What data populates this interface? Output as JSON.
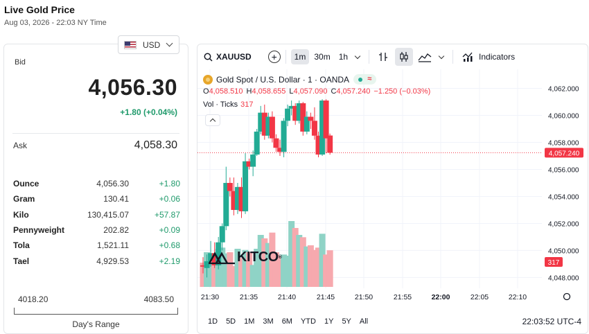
{
  "page": {
    "title": "Live Gold Price",
    "subtitle": "Aug 03, 2026 - 22:03 NY Time"
  },
  "currency": {
    "selected": "USD",
    "icon": "us-flag-icon"
  },
  "quote": {
    "bid_label": "Bid",
    "bid_value": "4,056.30",
    "bid_change": "+1.80 (+0.04%)",
    "ask_label": "Ask",
    "ask_value": "4,058.30"
  },
  "units": [
    {
      "name": "Ounce",
      "price": "4,056.30",
      "change": "+1.80"
    },
    {
      "name": "Gram",
      "price": "130.41",
      "change": "+0.06"
    },
    {
      "name": "Kilo",
      "price": "130,415.07",
      "change": "+57.87"
    },
    {
      "name": "Pennyweight",
      "price": "202.82",
      "change": "+0.09"
    },
    {
      "name": "Tola",
      "price": "1,521.11",
      "change": "+0.68"
    },
    {
      "name": "Tael",
      "price": "4,929.53",
      "change": "+2.19"
    }
  ],
  "days_range": {
    "low": "4018.20",
    "high": "4083.50",
    "label": "Day's Range"
  },
  "colors": {
    "up": "#22ab94",
    "down": "#f23645",
    "change_text": "#1f9a6b",
    "gold": "#e7a62a"
  },
  "toolbar": {
    "symbol": "XAUUSD",
    "intervals": [
      "1m",
      "30m",
      "1h"
    ],
    "active_interval": "1m",
    "indicators_label": "Indicators"
  },
  "legend": {
    "title": "Gold Spot / U.S. Dollar · 1 · OANDA",
    "ohlc": [
      {
        "key": "O",
        "value": "4,058.510"
      },
      {
        "key": "H",
        "value": "4,058.655"
      },
      {
        "key": "L",
        "value": "4,057.090"
      },
      {
        "key": "C",
        "value": "4,057.240"
      },
      {
        "key": "",
        "value": "−1.250 (−0.03%)"
      }
    ],
    "vol_label": "Vol · Ticks",
    "vol_value": "317"
  },
  "watermark": {
    "text": "KITCO",
    "reg": "®"
  },
  "range_buttons": [
    "1D",
    "5D",
    "1M",
    "3M",
    "6M",
    "YTD",
    "1Y",
    "5Y",
    "All"
  ],
  "clock": "22:03:52 UTC-4",
  "chart_data": {
    "type": "candlestick",
    "price_axis": {
      "ticks": [
        "4,062.000",
        "4,060.000",
        "4,058.000",
        "4,056.000",
        "4,054.000",
        "4,052.000",
        "4,050.000",
        "4,048.000"
      ],
      "ylim": [
        4047.2,
        4062.9
      ]
    },
    "time_axis": {
      "ticks": [
        "21:30",
        "21:35",
        "21:40",
        "21:45",
        "21:50",
        "21:55",
        "22:00",
        "22:05",
        "22:10"
      ]
    },
    "last_price_label": "4,057.240",
    "last_volume_label": "317",
    "candles": [
      {
        "t": "21:30",
        "o": 4048.9,
        "h": 4049.5,
        "l": 4048.3,
        "c": 4048.8
      },
      {
        "t": "21:31",
        "o": 4048.7,
        "h": 4049.7,
        "l": 4048.0,
        "c": 4049.2
      },
      {
        "t": "21:32",
        "o": 4049.2,
        "h": 4050.7,
        "l": 4048.8,
        "c": 4049.8
      },
      {
        "t": "21:33",
        "o": 4049.8,
        "h": 4050.6,
        "l": 4048.7,
        "c": 4048.9
      },
      {
        "t": "21:34",
        "o": 4048.9,
        "h": 4051.0,
        "l": 4048.6,
        "c": 4050.6
      },
      {
        "t": "21:35",
        "o": 4050.6,
        "h": 4052.0,
        "l": 4050.0,
        "c": 4051.8
      },
      {
        "t": "21:36",
        "o": 4051.8,
        "h": 4056.2,
        "l": 4051.5,
        "c": 4055.0
      },
      {
        "t": "21:37",
        "o": 4055.0,
        "h": 4055.4,
        "l": 4054.0,
        "c": 4054.4
      },
      {
        "t": "21:38",
        "o": 4054.4,
        "h": 4055.4,
        "l": 4052.6,
        "c": 4053.0
      },
      {
        "t": "21:39",
        "o": 4053.0,
        "h": 4055.0,
        "l": 4052.7,
        "c": 4054.7
      },
      {
        "t": "21:40",
        "o": 4054.7,
        "h": 4055.4,
        "l": 4052.4,
        "c": 4052.9
      },
      {
        "t": "21:41",
        "o": 4052.9,
        "h": 4057.2,
        "l": 4052.7,
        "c": 4056.6
      },
      {
        "t": "21:42",
        "o": 4056.6,
        "h": 4056.8,
        "l": 4056.0,
        "c": 4056.2
      },
      {
        "t": "21:43",
        "o": 4056.2,
        "h": 4057.4,
        "l": 4055.5,
        "c": 4057.1
      },
      {
        "t": "21:44",
        "o": 4057.1,
        "h": 4059.0,
        "l": 4057.0,
        "c": 4058.8
      },
      {
        "t": "21:45",
        "o": 4058.8,
        "h": 4060.7,
        "l": 4058.6,
        "c": 4060.2
      },
      {
        "t": "21:46",
        "o": 4060.2,
        "h": 4060.8,
        "l": 4058.2,
        "c": 4058.5
      },
      {
        "t": "21:47",
        "o": 4058.5,
        "h": 4060.2,
        "l": 4058.3,
        "c": 4059.9
      },
      {
        "t": "21:48",
        "o": 4059.9,
        "h": 4060.3,
        "l": 4058.0,
        "c": 4058.3
      },
      {
        "t": "21:49",
        "o": 4058.3,
        "h": 4058.6,
        "l": 4057.3,
        "c": 4057.6
      },
      {
        "t": "21:50",
        "o": 4057.6,
        "h": 4058.2,
        "l": 4057.0,
        "c": 4057.3
      },
      {
        "t": "21:51",
        "o": 4057.3,
        "h": 4059.8,
        "l": 4056.9,
        "c": 4059.6
      },
      {
        "t": "21:52",
        "o": 4059.6,
        "h": 4060.8,
        "l": 4059.2,
        "c": 4060.5
      },
      {
        "t": "21:53",
        "o": 4060.5,
        "h": 4061.1,
        "l": 4060.0,
        "c": 4060.7
      },
      {
        "t": "21:54",
        "o": 4060.7,
        "h": 4060.9,
        "l": 4059.3,
        "c": 4059.6
      },
      {
        "t": "21:55",
        "o": 4059.6,
        "h": 4061.1,
        "l": 4059.4,
        "c": 4060.9
      },
      {
        "t": "21:56",
        "o": 4060.9,
        "h": 4061.0,
        "l": 4058.5,
        "c": 4058.8
      },
      {
        "t": "21:57",
        "o": 4058.8,
        "h": 4060.3,
        "l": 4058.6,
        "c": 4059.9
      },
      {
        "t": "21:58",
        "o": 4059.9,
        "h": 4060.2,
        "l": 4059.0,
        "c": 4059.6
      },
      {
        "t": "21:59",
        "o": 4059.6,
        "h": 4060.6,
        "l": 4058.2,
        "c": 4058.5
      },
      {
        "t": "22:00",
        "o": 4058.5,
        "h": 4058.8,
        "l": 4056.9,
        "c": 4057.1
      },
      {
        "t": "22:01",
        "o": 4057.1,
        "h": 4061.2,
        "l": 4057.0,
        "c": 4061.1
      },
      {
        "t": "22:02",
        "o": 4061.1,
        "h": 4061.2,
        "l": 4057.2,
        "c": 4058.3
      },
      {
        "t": "22:03",
        "o": 4058.51,
        "h": 4058.655,
        "l": 4057.09,
        "c": 4057.24
      }
    ],
    "volumes": [
      210,
      300,
      290,
      230,
      330,
      340,
      290,
      300,
      180,
      330,
      250,
      320,
      300,
      190,
      330,
      450,
      420,
      380,
      470,
      300,
      270,
      280,
      270,
      570,
      510,
      450,
      430,
      350,
      360,
      320,
      340,
      460,
      280,
      317
    ]
  }
}
